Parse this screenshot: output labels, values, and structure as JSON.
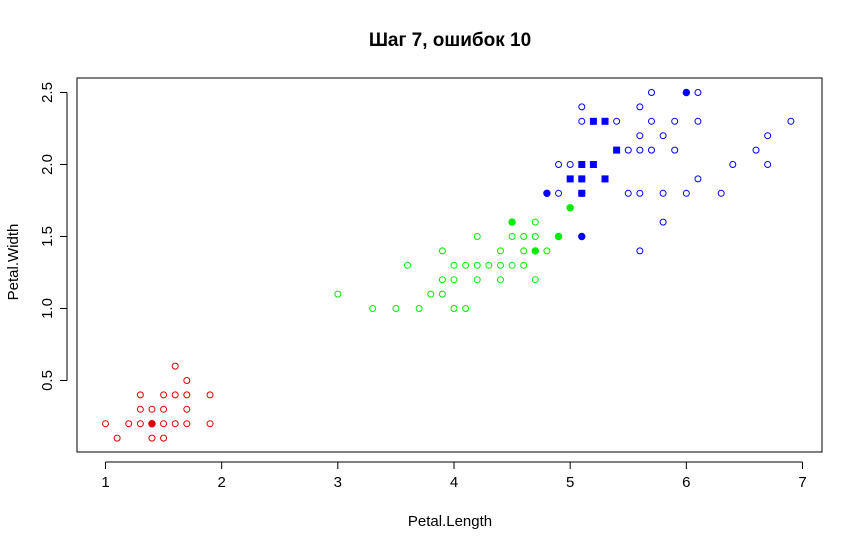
{
  "chart_data": {
    "type": "scatter",
    "title": "Шаг 7, ошибок 10",
    "xlabel": "Petal.Length",
    "ylabel": "Petal.Width",
    "xlim": [
      0.88,
      7.02
    ],
    "ylim": [
      -0.0,
      2.6
    ],
    "xticks": [
      1,
      2,
      3,
      4,
      5,
      6,
      7
    ],
    "xtick_labels": [
      "1",
      "2",
      "3",
      "4",
      "5",
      "6",
      "7"
    ],
    "yticks": [
      0.5,
      1.0,
      1.5,
      2.0,
      2.5
    ],
    "ytick_labels": [
      "0.5",
      "1.0",
      "1.5",
      "2.0",
      "2.5"
    ],
    "grid": false,
    "colors": {
      "setosa": "#e00000",
      "versicolor": "#00ee00",
      "virginica": "#0000ff"
    },
    "series": [
      {
        "color": "#e00000",
        "marker": "open-circle",
        "points": [
          [
            1.0,
            0.2
          ],
          [
            1.1,
            0.1
          ],
          [
            1.2,
            0.2
          ],
          [
            1.3,
            0.4
          ],
          [
            1.3,
            0.3
          ],
          [
            1.3,
            0.2
          ],
          [
            1.4,
            0.3
          ],
          [
            1.4,
            0.1
          ],
          [
            1.4,
            0.2
          ],
          [
            1.5,
            0.4
          ],
          [
            1.5,
            0.3
          ],
          [
            1.5,
            0.2
          ],
          [
            1.5,
            0.1
          ],
          [
            1.6,
            0.6
          ],
          [
            1.6,
            0.4
          ],
          [
            1.6,
            0.2
          ],
          [
            1.7,
            0.5
          ],
          [
            1.7,
            0.4
          ],
          [
            1.7,
            0.3
          ],
          [
            1.7,
            0.2
          ],
          [
            1.9,
            0.4
          ],
          [
            1.9,
            0.2
          ]
        ]
      },
      {
        "color": "#e00000",
        "marker": "filled-circle",
        "points": [
          [
            1.4,
            0.2
          ]
        ]
      },
      {
        "color": "#00ee00",
        "marker": "open-circle",
        "points": [
          [
            3.0,
            1.1
          ],
          [
            3.3,
            1.0
          ],
          [
            3.5,
            1.0
          ],
          [
            3.6,
            1.3
          ],
          [
            3.7,
            1.0
          ],
          [
            3.8,
            1.1
          ],
          [
            3.9,
            1.4
          ],
          [
            3.9,
            1.2
          ],
          [
            3.9,
            1.1
          ],
          [
            4.0,
            1.3
          ],
          [
            4.0,
            1.2
          ],
          [
            4.0,
            1.0
          ],
          [
            4.1,
            1.3
          ],
          [
            4.1,
            1.0
          ],
          [
            4.2,
            1.5
          ],
          [
            4.2,
            1.3
          ],
          [
            4.2,
            1.2
          ],
          [
            4.3,
            1.3
          ],
          [
            4.4,
            1.4
          ],
          [
            4.4,
            1.3
          ],
          [
            4.4,
            1.2
          ],
          [
            4.5,
            1.5
          ],
          [
            4.5,
            1.3
          ],
          [
            4.6,
            1.5
          ],
          [
            4.6,
            1.4
          ],
          [
            4.6,
            1.3
          ],
          [
            4.7,
            1.6
          ],
          [
            4.7,
            1.5
          ],
          [
            4.7,
            1.2
          ],
          [
            4.8,
            1.4
          ],
          [
            4.9,
            1.5
          ]
        ]
      },
      {
        "color": "#00ee00",
        "marker": "filled-circle",
        "points": [
          [
            4.5,
            1.6
          ],
          [
            4.7,
            1.4
          ],
          [
            4.9,
            1.5
          ],
          [
            5.0,
            1.7
          ]
        ]
      },
      {
        "color": "#0000ff",
        "marker": "open-circle",
        "points": [
          [
            4.9,
            1.8
          ],
          [
            4.9,
            2.0
          ],
          [
            5.0,
            2.0
          ],
          [
            5.1,
            2.4
          ],
          [
            5.1,
            2.3
          ],
          [
            5.1,
            1.9
          ],
          [
            5.1,
            1.8
          ],
          [
            5.3,
            1.9
          ],
          [
            5.4,
            2.3
          ],
          [
            5.5,
            2.1
          ],
          [
            5.5,
            1.8
          ],
          [
            5.6,
            2.4
          ],
          [
            5.6,
            2.2
          ],
          [
            5.6,
            2.1
          ],
          [
            5.6,
            1.8
          ],
          [
            5.6,
            1.4
          ],
          [
            5.7,
            2.5
          ],
          [
            5.7,
            2.3
          ],
          [
            5.7,
            2.1
          ],
          [
            5.8,
            2.2
          ],
          [
            5.8,
            1.8
          ],
          [
            5.8,
            1.6
          ],
          [
            5.9,
            2.3
          ],
          [
            5.9,
            2.1
          ],
          [
            6.0,
            1.8
          ],
          [
            6.1,
            2.5
          ],
          [
            6.1,
            2.3
          ],
          [
            6.1,
            1.9
          ],
          [
            6.3,
            1.8
          ],
          [
            6.4,
            2.0
          ],
          [
            6.6,
            2.1
          ],
          [
            6.7,
            2.2
          ],
          [
            6.7,
            2.0
          ],
          [
            6.9,
            2.3
          ]
        ]
      },
      {
        "color": "#0000ff",
        "marker": "filled-circle",
        "points": [
          [
            4.8,
            1.8
          ],
          [
            5.1,
            1.5
          ],
          [
            6.0,
            2.5
          ]
        ]
      },
      {
        "color": "#0000ff",
        "marker": "filled-square",
        "points": [
          [
            5.0,
            1.9
          ],
          [
            5.1,
            2.0
          ],
          [
            5.1,
            1.9
          ],
          [
            5.1,
            1.8
          ],
          [
            5.2,
            2.3
          ],
          [
            5.2,
            2.0
          ],
          [
            5.3,
            2.3
          ],
          [
            5.3,
            1.9
          ],
          [
            5.4,
            2.1
          ]
        ]
      }
    ]
  }
}
